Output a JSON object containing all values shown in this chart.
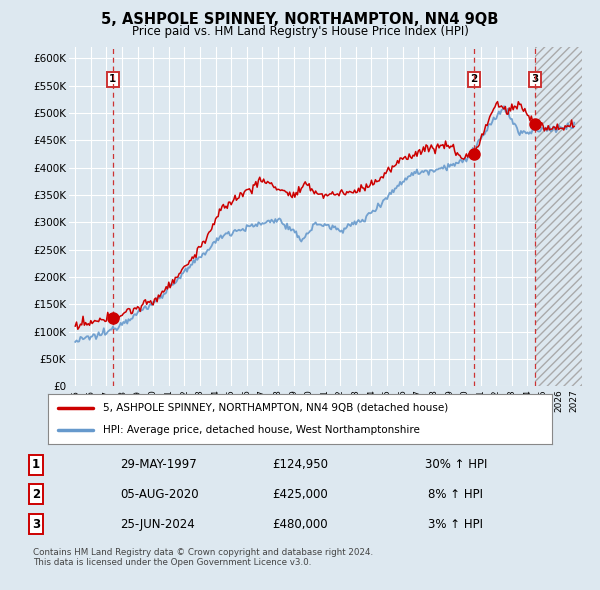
{
  "title": "5, ASHPOLE SPINNEY, NORTHAMPTON, NN4 9QB",
  "subtitle": "Price paid vs. HM Land Registry's House Price Index (HPI)",
  "title_fontsize": 10.5,
  "subtitle_fontsize": 8.5,
  "background_color": "#dde8f0",
  "plot_bg_color": "#dde8f0",
  "ylim": [
    0,
    620000
  ],
  "yticks": [
    0,
    50000,
    100000,
    150000,
    200000,
    250000,
    300000,
    350000,
    400000,
    450000,
    500000,
    550000,
    600000
  ],
  "ytick_labels": [
    "£0",
    "£50K",
    "£100K",
    "£150K",
    "£200K",
    "£250K",
    "£300K",
    "£350K",
    "£400K",
    "£450K",
    "£500K",
    "£550K",
    "£600K"
  ],
  "xlim_start": 1994.6,
  "xlim_end": 2027.5,
  "hpi_color": "#6699cc",
  "price_color": "#cc0000",
  "vline_color": "#cc3333",
  "hatch_start": 2024.5,
  "sale_points": [
    {
      "year": 1997.4,
      "price": 124950,
      "label": "1"
    },
    {
      "year": 2020.58,
      "price": 425000,
      "label": "2"
    },
    {
      "year": 2024.47,
      "price": 480000,
      "label": "3"
    }
  ],
  "legend_entries": [
    {
      "label": "5, ASHPOLE SPINNEY, NORTHAMPTON, NN4 9QB (detached house)",
      "color": "#cc0000"
    },
    {
      "label": "HPI: Average price, detached house, West Northamptonshire",
      "color": "#6699cc"
    }
  ],
  "table_rows": [
    {
      "num": "1",
      "date": "29-MAY-1997",
      "price": "£124,950",
      "hpi": "30% ↑ HPI"
    },
    {
      "num": "2",
      "date": "05-AUG-2020",
      "price": "£425,000",
      "hpi": "8% ↑ HPI"
    },
    {
      "num": "3",
      "date": "25-JUN-2024",
      "price": "£480,000",
      "hpi": "3% ↑ HPI"
    }
  ],
  "footer": "Contains HM Land Registry data © Crown copyright and database right 2024.\nThis data is licensed under the Open Government Licence v3.0."
}
